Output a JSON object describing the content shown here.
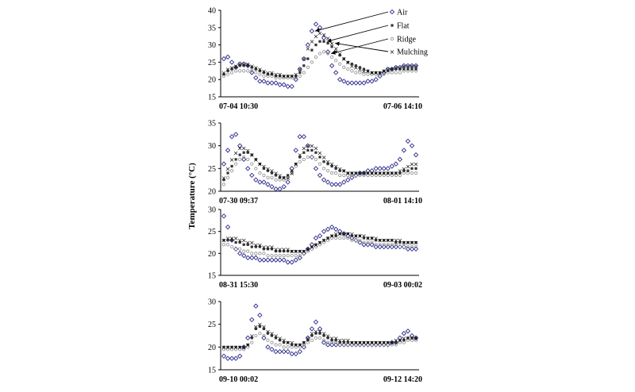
{
  "figure": {
    "y_axis_label": "Temperature (°C)",
    "legend": [
      "Air",
      "Flat",
      "Ridge",
      "Mulching"
    ]
  },
  "colors": {
    "Air": "#2b2b8c",
    "Flat": "#333333",
    "Ridge": "#999999",
    "Mulching": "#111111",
    "axis": "#000000"
  },
  "chart_data": [
    {
      "type": "scatter",
      "title": "",
      "xlabel": "",
      "ylabel": "Temperature (°C)",
      "x_range_labels": [
        "07-04 10:30",
        "07-06 14:10"
      ],
      "x": [
        0,
        1,
        2,
        3,
        4,
        5,
        6,
        7,
        8,
        9,
        10,
        11,
        12,
        13,
        14,
        15,
        16,
        17,
        18,
        19,
        20,
        21,
        22,
        23,
        24,
        25,
        26,
        27,
        28,
        29,
        30,
        31,
        32,
        33,
        34,
        35,
        36,
        37,
        38,
        39,
        40,
        41,
        42,
        43,
        44,
        45,
        46,
        47,
        48
      ],
      "ylim": [
        15,
        40
      ],
      "yticks": [
        15,
        20,
        25,
        30,
        35,
        40
      ],
      "series": [
        {
          "name": "Air",
          "values": [
            26,
            26.5,
            25,
            23.5,
            24.5,
            24.5,
            24,
            22,
            20.5,
            19.5,
            19.5,
            19,
            19,
            19,
            18.5,
            18.5,
            18,
            18,
            20,
            23,
            26,
            30,
            34,
            36,
            35,
            32,
            28,
            24,
            22,
            20,
            19.5,
            19,
            19,
            19,
            19,
            19,
            19.5,
            19.5,
            20,
            21,
            22,
            23,
            23,
            23.5,
            23.5,
            24,
            24,
            24,
            24
          ]
        },
        {
          "name": "Flat",
          "values": [
            21.5,
            22.5,
            23,
            23.5,
            24,
            24,
            24,
            23.5,
            23,
            22.5,
            22,
            21.5,
            21.5,
            21,
            21,
            21,
            21,
            21,
            21,
            22,
            24,
            26,
            28.5,
            30,
            31,
            31,
            30.5,
            29.5,
            28,
            27,
            26,
            25,
            24.5,
            24,
            23.5,
            23,
            22.5,
            22,
            22,
            22,
            22.5,
            22.5,
            23,
            23,
            23,
            23,
            23,
            23,
            23
          ]
        },
        {
          "name": "Ridge",
          "values": [
            21,
            21.5,
            22,
            22.5,
            22.5,
            22.5,
            22.5,
            22.5,
            22,
            21.5,
            21,
            21,
            21,
            20.5,
            20.5,
            20.5,
            20.5,
            20.5,
            20.5,
            21,
            22,
            23.5,
            25,
            26.5,
            27.5,
            28,
            27.5,
            26.5,
            25.5,
            24.5,
            23.5,
            23,
            22.5,
            22,
            22,
            21.5,
            21.5,
            21.5,
            21.5,
            21.5,
            21.5,
            22,
            22,
            22,
            22,
            22.5,
            22.5,
            22.5,
            22.5
          ]
        },
        {
          "name": "Mulching",
          "values": [
            22,
            23,
            23.5,
            24,
            24.5,
            24.5,
            24.5,
            24,
            23.5,
            23,
            22.5,
            22,
            22,
            21.5,
            21.5,
            21,
            21,
            21,
            21.5,
            23,
            26,
            29,
            31,
            32.5,
            33.5,
            33,
            32,
            30.5,
            29,
            27.5,
            26,
            25,
            24,
            23.5,
            23,
            22.5,
            22.5,
            22,
            22,
            22,
            22.5,
            23,
            23,
            23.5,
            23.5,
            24,
            24,
            24,
            24
          ]
        }
      ]
    },
    {
      "type": "scatter",
      "title": "",
      "xlabel": "",
      "ylabel": "Temperature (°C)",
      "x_range_labels": [
        "07-30 09:37",
        "08-01 14:10"
      ],
      "x": [
        0,
        1,
        2,
        3,
        4,
        5,
        6,
        7,
        8,
        9,
        10,
        11,
        12,
        13,
        14,
        15,
        16,
        17,
        18,
        19,
        20,
        21,
        22,
        23,
        24,
        25,
        26,
        27,
        28,
        29,
        30,
        31,
        32,
        33,
        34,
        35,
        36,
        37,
        38,
        39,
        40,
        41,
        42,
        43,
        44,
        45,
        46,
        47,
        48
      ],
      "ylim": [
        20,
        35
      ],
      "yticks": [
        20,
        25,
        30,
        35
      ],
      "series": [
        {
          "name": "Air",
          "values": [
            26,
            29,
            32,
            32.5,
            30,
            27,
            25,
            23.5,
            22.5,
            22,
            22,
            21.5,
            21,
            20.5,
            20.5,
            21,
            22,
            25,
            29,
            32,
            32,
            30,
            27.5,
            25,
            23.5,
            22.5,
            22,
            21.5,
            21.5,
            21.5,
            22,
            22.5,
            23,
            23.5,
            24,
            24,
            24.5,
            24.5,
            25,
            25,
            25,
            25,
            25.5,
            26,
            27,
            29,
            31,
            30,
            28
          ]
        },
        {
          "name": "Flat",
          "values": [
            22.5,
            24,
            25.5,
            27,
            28,
            28.5,
            28.5,
            28,
            27,
            26,
            25,
            24.5,
            24,
            23.5,
            23,
            23,
            23.5,
            24.5,
            26,
            27.5,
            28.5,
            29,
            29,
            28.5,
            27.5,
            26.5,
            26,
            25.5,
            25,
            24.5,
            24.5,
            24,
            24,
            24,
            24,
            24,
            24,
            24,
            24,
            24,
            24,
            24,
            24,
            24,
            24,
            24.5,
            24.5,
            25,
            25
          ]
        },
        {
          "name": "Ridge",
          "values": [
            21.5,
            23,
            24.5,
            26,
            27,
            27.5,
            27,
            26,
            25,
            24,
            23.5,
            23,
            23,
            22.5,
            22.5,
            22.5,
            23,
            24,
            25.5,
            26.5,
            27,
            27.5,
            27.5,
            27,
            26,
            25,
            24.5,
            24,
            24,
            23.5,
            23.5,
            23.5,
            23.5,
            23.5,
            23.5,
            23.5,
            23.5,
            23.5,
            23.5,
            23.5,
            23.5,
            23.5,
            23.5,
            23.5,
            23.5,
            24,
            24,
            24,
            24
          ]
        },
        {
          "name": "Mulching",
          "values": [
            23,
            25,
            27,
            28.5,
            29.5,
            29.5,
            29,
            28,
            27,
            26,
            25.5,
            25,
            24.5,
            24,
            23.5,
            23,
            23,
            24,
            26,
            28,
            29.5,
            30,
            30,
            29.5,
            28.5,
            27.5,
            26.5,
            26,
            25.5,
            25,
            24.5,
            24,
            24,
            24,
            24,
            24,
            24,
            24,
            24,
            24,
            24,
            24,
            24,
            24,
            24.5,
            25,
            25.5,
            26,
            26
          ]
        }
      ]
    },
    {
      "type": "scatter",
      "title": "",
      "xlabel": "",
      "ylabel": "Temperature (°C)",
      "x_range_labels": [
        "08-31 15:30",
        "09-03 00:02"
      ],
      "x": [
        0,
        1,
        2,
        3,
        4,
        5,
        6,
        7,
        8,
        9,
        10,
        11,
        12,
        13,
        14,
        15,
        16,
        17,
        18,
        19,
        20,
        21,
        22,
        23,
        24,
        25,
        26,
        27,
        28,
        29,
        30,
        31,
        32,
        33,
        34,
        35,
        36,
        37,
        38,
        39,
        40,
        41,
        42,
        43,
        44,
        45,
        46,
        47,
        48
      ],
      "ylim": [
        15,
        30
      ],
      "yticks": [
        15,
        20,
        25,
        30
      ],
      "series": [
        {
          "name": "Air",
          "values": [
            28.5,
            26,
            23,
            21,
            20,
            19.5,
            19,
            19,
            19,
            18.5,
            18.5,
            18.5,
            18.5,
            18.5,
            18.5,
            18.5,
            18,
            18,
            18.5,
            19,
            20,
            21,
            22,
            23.5,
            24,
            25,
            25.5,
            26,
            25.5,
            25,
            24.5,
            24,
            23.5,
            23,
            22.5,
            22,
            22,
            22,
            21.5,
            21.5,
            21.5,
            21.5,
            21.5,
            21.5,
            21.5,
            21.5,
            21,
            21,
            21
          ]
        },
        {
          "name": "Flat",
          "values": [
            23,
            23,
            23,
            22.5,
            22.5,
            22,
            22,
            21.5,
            21.5,
            21.5,
            21,
            21,
            21,
            20.5,
            20.5,
            20.5,
            20.5,
            20.5,
            20.5,
            20.5,
            20.5,
            21,
            21.5,
            22,
            22.5,
            23,
            23.5,
            24,
            24,
            24.5,
            24.5,
            24.5,
            24,
            24,
            24,
            23.5,
            23.5,
            23.5,
            23,
            23,
            23,
            23,
            23,
            22.5,
            22.5,
            22.5,
            22.5,
            22.5,
            22.5
          ]
        },
        {
          "name": "Ridge",
          "values": [
            22,
            22,
            21.5,
            21,
            21,
            20.5,
            20.5,
            20,
            20,
            20,
            20,
            19.5,
            19.5,
            19.5,
            19.5,
            19.5,
            19.5,
            19.5,
            19.5,
            19.5,
            20,
            20.5,
            21,
            21.5,
            22,
            22.5,
            23,
            23.5,
            23.5,
            23.5,
            23.5,
            23.5,
            23,
            23,
            23,
            22.5,
            22.5,
            22.5,
            22,
            22,
            22,
            22,
            22,
            22,
            21.5,
            21.5,
            21.5,
            21.5,
            21.5
          ]
        },
        {
          "name": "Mulching",
          "values": [
            23,
            23.5,
            23.5,
            23.5,
            23,
            23,
            22.5,
            22.5,
            22,
            22,
            21.5,
            21.5,
            21.5,
            21,
            21,
            21,
            21,
            20.5,
            20.5,
            20.5,
            20.5,
            21,
            21.5,
            22,
            22.5,
            23,
            23.5,
            24,
            24.5,
            24.5,
            24.5,
            24.5,
            24.5,
            24,
            24,
            24,
            23.5,
            23.5,
            23.5,
            23,
            23,
            23,
            23,
            23,
            23,
            22.5,
            22.5,
            22.5,
            22.5
          ]
        }
      ]
    },
    {
      "type": "scatter",
      "title": "",
      "xlabel": "",
      "ylabel": "Temperature (°C)",
      "x_range_labels": [
        "09-10 00:02",
        "09-12 14:20"
      ],
      "x": [
        0,
        1,
        2,
        3,
        4,
        5,
        6,
        7,
        8,
        9,
        10,
        11,
        12,
        13,
        14,
        15,
        16,
        17,
        18,
        19,
        20,
        21,
        22,
        23,
        24,
        25,
        26,
        27,
        28,
        29,
        30,
        31,
        32,
        33,
        34,
        35,
        36,
        37,
        38,
        39,
        40,
        41,
        42,
        43,
        44,
        45,
        46,
        47,
        48
      ],
      "ylim": [
        15,
        30
      ],
      "yticks": [
        15,
        20,
        25,
        30
      ],
      "series": [
        {
          "name": "Air",
          "values": [
            18,
            17.5,
            17.5,
            17.5,
            18,
            20,
            22,
            26,
            29,
            27,
            22,
            20,
            19.5,
            19,
            19,
            19,
            19,
            18.5,
            18.5,
            19,
            20,
            22,
            24,
            25.5,
            24,
            21,
            20.5,
            20.5,
            20.5,
            20.5,
            20.5,
            20.5,
            20.5,
            20.5,
            20.5,
            20.5,
            20.5,
            20.5,
            20.5,
            20.5,
            20.5,
            20.5,
            21,
            21,
            22,
            23,
            23.5,
            22.5,
            22
          ]
        },
        {
          "name": "Flat",
          "values": [
            20,
            20,
            20,
            20,
            20,
            20,
            20.5,
            22,
            24,
            24.5,
            24,
            23,
            22.5,
            22,
            21.5,
            21,
            21,
            20.5,
            20.5,
            20.5,
            21,
            21.5,
            22.5,
            23,
            23,
            22.5,
            22,
            21.5,
            21.5,
            21,
            21,
            21,
            21,
            21,
            21,
            21,
            21,
            21,
            21,
            21,
            21,
            21,
            21,
            21,
            21.5,
            21.5,
            22,
            22,
            22
          ]
        },
        {
          "name": "Ridge",
          "values": [
            19.5,
            19.5,
            19.5,
            19.5,
            19.5,
            19.5,
            20,
            21,
            22.5,
            23,
            22.5,
            21.5,
            21,
            20.5,
            20.5,
            20,
            20,
            20,
            20,
            20,
            20.5,
            21,
            21.5,
            22,
            22,
            21.5,
            21,
            21,
            21,
            20.5,
            20.5,
            20.5,
            20.5,
            20.5,
            20.5,
            20.5,
            20.5,
            20.5,
            20.5,
            20.5,
            20.5,
            20.5,
            20.5,
            20.5,
            21,
            21,
            21.5,
            21.5,
            21.5
          ]
        },
        {
          "name": "Mulching",
          "values": [
            20,
            20,
            20,
            20,
            20,
            20,
            20.5,
            22.5,
            24.5,
            25,
            24.5,
            23.5,
            23,
            22.5,
            22,
            21.5,
            21,
            21,
            20.5,
            20.5,
            21,
            22,
            23,
            23.5,
            23.5,
            23,
            22.5,
            22,
            22,
            21.5,
            21.5,
            21.5,
            21,
            21,
            21,
            21,
            21,
            21,
            21,
            21,
            21,
            21,
            21,
            21.5,
            21.5,
            22,
            22,
            22,
            22
          ]
        }
      ]
    }
  ]
}
